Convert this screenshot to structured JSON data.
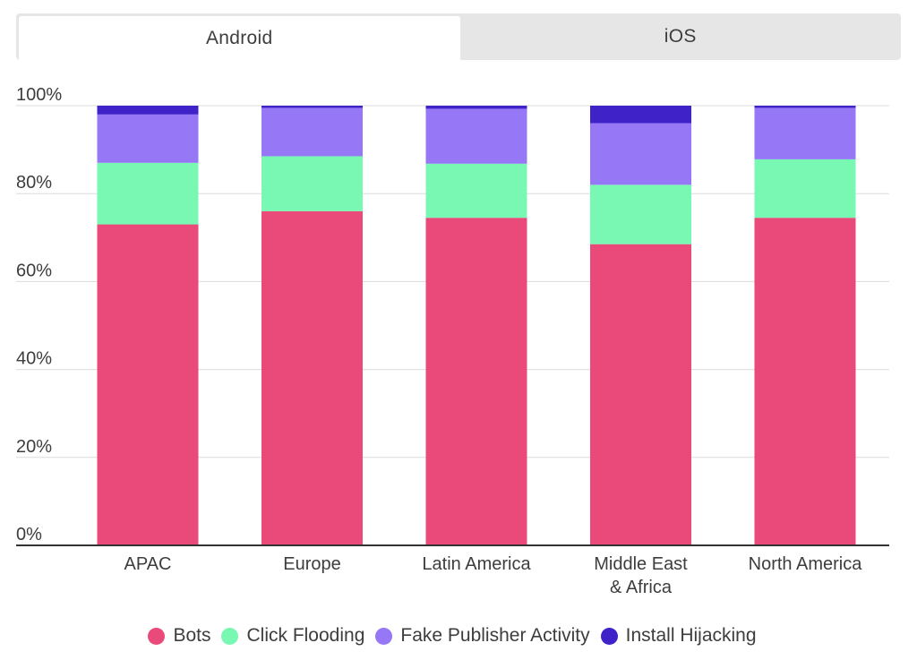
{
  "tabs": [
    {
      "label": "Android",
      "active": true
    },
    {
      "label": "iOS",
      "active": false
    }
  ],
  "colors": {
    "grid": "#dcdcdc",
    "axis": "#333333",
    "text": "#3d3d3d"
  },
  "chart_data": {
    "type": "bar",
    "stacked": true,
    "categories": [
      "APAC",
      "Europe",
      "Latin America",
      "Middle East & Africa",
      "North America"
    ],
    "series": [
      {
        "name": "Bots",
        "color": "#e94a79",
        "values": [
          73,
          76,
          74.5,
          68.5,
          74.5
        ]
      },
      {
        "name": "Click Flooding",
        "color": "#79f8b4",
        "values": [
          14,
          12.5,
          12.3,
          13.5,
          13.3
        ]
      },
      {
        "name": "Fake Publisher Activity",
        "color": "#9678f6",
        "values": [
          11,
          11,
          12.5,
          14,
          11.7
        ]
      },
      {
        "name": "Install Hijacking",
        "color": "#3f22c8",
        "values": [
          2,
          0.5,
          0.7,
          4,
          0.5
        ]
      }
    ],
    "yticks": [
      "0%",
      "20%",
      "40%",
      "60%",
      "80%",
      "100%"
    ],
    "ylim": [
      0,
      100
    ],
    "grid": true,
    "legend_position": "bottom"
  }
}
